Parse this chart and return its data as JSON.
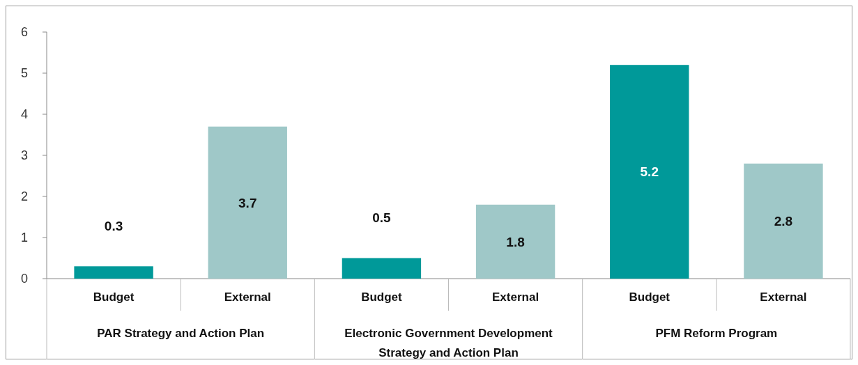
{
  "chart_data": {
    "type": "bar",
    "categories": [
      "PAR Strategy and Action Plan",
      "Electronic Government Development Strategy and Action Plan",
      "PFM Reform Program"
    ],
    "series": [
      {
        "name": "Budget",
        "color": "#009999",
        "values": [
          0.3,
          0.5,
          5.2
        ]
      },
      {
        "name": "External",
        "color": "#9fc8c8",
        "values": [
          3.7,
          1.8,
          2.8
        ]
      }
    ],
    "ylim": [
      0,
      6
    ],
    "yticks": [
      0,
      1,
      2,
      3,
      4,
      5,
      6
    ],
    "data_labels": true
  }
}
